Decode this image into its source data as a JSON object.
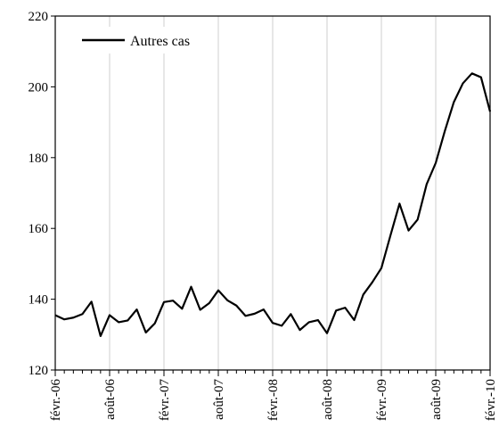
{
  "chart_data": {
    "type": "line",
    "title": "",
    "xlabel": "",
    "ylabel": "",
    "ylim": [
      120,
      220
    ],
    "yticks": [
      120,
      140,
      160,
      180,
      200,
      220
    ],
    "xtick_labels": [
      "févr.-06",
      "août-06",
      "févr.-07",
      "août-07",
      "févr.-08",
      "août-08",
      "févr.-09",
      "août-09",
      "févr.-10"
    ],
    "x_start": "févr.-06",
    "x_end": "févr.-10",
    "grid": {
      "x": true,
      "y": false
    },
    "legend": {
      "position": "top-left"
    },
    "series": [
      {
        "name": "Autres cas",
        "color": "#000000",
        "values": [
          135.5,
          134.3,
          134.8,
          135.8,
          139.3,
          129.6,
          135.5,
          133.5,
          134.0,
          137.1,
          130.6,
          133.2,
          139.2,
          139.6,
          137.3,
          143.5,
          137.0,
          138.9,
          142.5,
          139.7,
          138.2,
          135.3,
          135.9,
          137.1,
          133.3,
          132.5,
          135.8,
          131.3,
          133.5,
          134.1,
          130.4,
          136.8,
          137.6,
          134.1,
          141.3,
          144.8,
          148.8,
          158.0,
          167.0,
          159.4,
          162.5,
          172.5,
          178.5,
          187.5,
          195.7,
          201.0,
          203.8,
          202.7,
          193.0
        ]
      }
    ]
  }
}
